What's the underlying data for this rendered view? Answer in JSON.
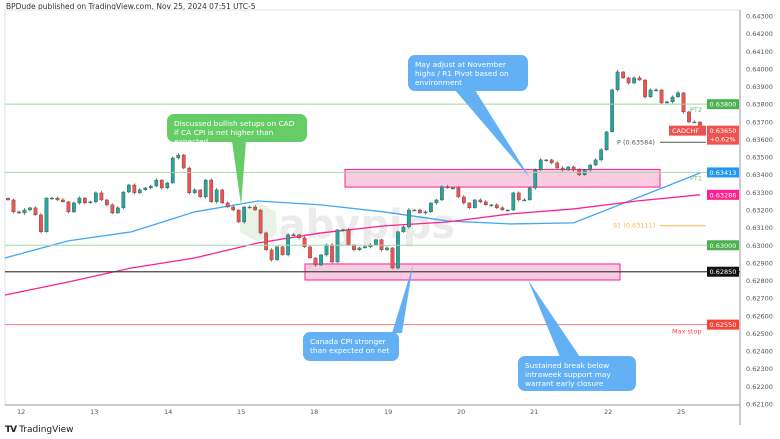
{
  "header": {
    "published": "BPDude published on TradingView.com, Nov 25, 2024 07:51 UTC-5"
  },
  "footer": {
    "brand": "TradingView"
  },
  "watermark": "babypips",
  "colors": {
    "up": "#26a69a",
    "down": "#ef5350",
    "ma_fast": "#42a5f5",
    "ma_slow": "#ff1f8e",
    "target": "#a5d6a7",
    "stop": "#f77c80",
    "zone": "#f8bbd9",
    "zone_border": "#ff1f8e",
    "green_callout": "#66cc66",
    "blue_callout": "#64b0f5"
  },
  "chart_data": {
    "type": "candlestick",
    "symbol": "CADCHF",
    "x_ticks": [
      "12",
      "13",
      "14",
      "15",
      "18",
      "19",
      "20",
      "21",
      "22",
      "25"
    ],
    "y_ticks": [
      "0.64300",
      "0.64200",
      "0.64100",
      "0.64000",
      "0.63900",
      "0.63800",
      "0.63700",
      "0.63600",
      "0.63500",
      "0.63400",
      "0.63300",
      "0.63200",
      "0.63100",
      "0.63000",
      "0.62900",
      "0.62800",
      "0.62700",
      "0.62600",
      "0.62500",
      "0.62400",
      "0.62300",
      "0.62200",
      "0.62100"
    ],
    "ylim": [
      0.621,
      0.643
    ],
    "closes": [
      0.63257,
      0.63189,
      0.63183,
      0.632,
      0.63212,
      0.63172,
      0.63076,
      0.63268,
      0.63268,
      0.63257,
      0.63246,
      0.63189,
      0.6324,
      0.63268,
      0.6324,
      0.63246,
      0.63297,
      0.63257,
      0.63229,
      0.63183,
      0.63212,
      0.63302,
      0.63342,
      0.63297,
      0.63314,
      0.63325,
      0.63336,
      0.6337,
      0.63325,
      0.63353,
      0.63495,
      0.63512,
      0.63438,
      0.63297,
      0.63314,
      0.63274,
      0.6337,
      0.63246,
      0.63314,
      0.6324,
      0.63217,
      0.632,
      0.63132,
      0.63217,
      0.63217,
      0.632,
      0.6307,
      0.62974,
      0.62917,
      0.62991,
      0.62945,
      0.63059,
      0.63059,
      0.63042,
      0.62991,
      0.62928,
      0.62888,
      0.62945,
      0.63002,
      0.62905,
      0.63087,
      0.63087,
      0.63002,
      0.62974,
      0.62985,
      0.62991,
      0.63002,
      0.63031,
      0.62974,
      0.62985,
      0.62871,
      0.63076,
      0.63104,
      0.632,
      0.632,
      0.63183,
      0.63189,
      0.6324,
      0.63257,
      0.63331,
      0.63325,
      0.63325,
      0.63274,
      0.6324,
      0.63212,
      0.63257,
      0.63246,
      0.63229,
      0.63229,
      0.63212,
      0.632,
      0.632,
      0.63297,
      0.63257,
      0.63257,
      0.63325,
      0.63427,
      0.63484,
      0.63484,
      0.63467,
      0.63438,
      0.63427,
      0.63444,
      0.63427,
      0.63399,
      0.63427,
      0.63455,
      0.63484,
      0.63541,
      0.63643,
      0.63881,
      0.63983,
      0.63949,
      0.6392,
      0.63949,
      0.63937,
      0.63841,
      0.63881,
      0.63881,
      0.63807,
      0.63813,
      0.63841,
      0.63864,
      0.63756,
      0.63699,
      0.63699,
      0.6365
    ],
    "ma_fast": [
      0.62928,
      0.63025,
      0.63076,
      0.63189,
      0.63251,
      0.63229,
      0.63189,
      0.63138,
      0.63121,
      0.63127,
      0.63268,
      0.6341
    ],
    "ma_slow": [
      0.62718,
      0.62792,
      0.62871,
      0.62928,
      0.63013,
      0.6307,
      0.6311,
      0.63132,
      0.63178,
      0.63206,
      0.63251,
      0.63286
    ],
    "levels": [
      {
        "label": "PT2",
        "price": 0.638,
        "tag": "0.63800",
        "kind": "target"
      },
      {
        "label": "PT1",
        "price": 0.63413,
        "tag": "",
        "kind": "target"
      },
      {
        "label": "",
        "price": 0.63,
        "tag": "0.63000",
        "kind": "target"
      },
      {
        "label": "",
        "price": 0.6285,
        "tag": "0.62850",
        "kind": "support"
      },
      {
        "label": "Max stop",
        "price": 0.6255,
        "tag": "0.62550",
        "kind": "stop"
      }
    ],
    "pivots": [
      {
        "label": "P (0.63584)",
        "price": 0.63584,
        "color": "#555555"
      },
      {
        "label": "S1 (0.63111)",
        "price": 0.63111,
        "color": "#ffb74d"
      }
    ],
    "zones": [
      {
        "top": 0.6343,
        "bottom": 0.6333
      },
      {
        "top": 0.62894,
        "bottom": 0.62803
      }
    ],
    "price_tags": {
      "last": "0.63650",
      "change": "+0.62%",
      "ma_fast": "0.63413",
      "ma_slow": "0.63286"
    },
    "annotations": [
      "Discussed bullish setups on CAD if CA CPI is net higher than expected",
      "May adjust at November highs / R1 Pivot based on environment",
      "Canada CPI stronger than expected on net",
      "Sustained break below intraweek support may warrant early closure"
    ]
  }
}
